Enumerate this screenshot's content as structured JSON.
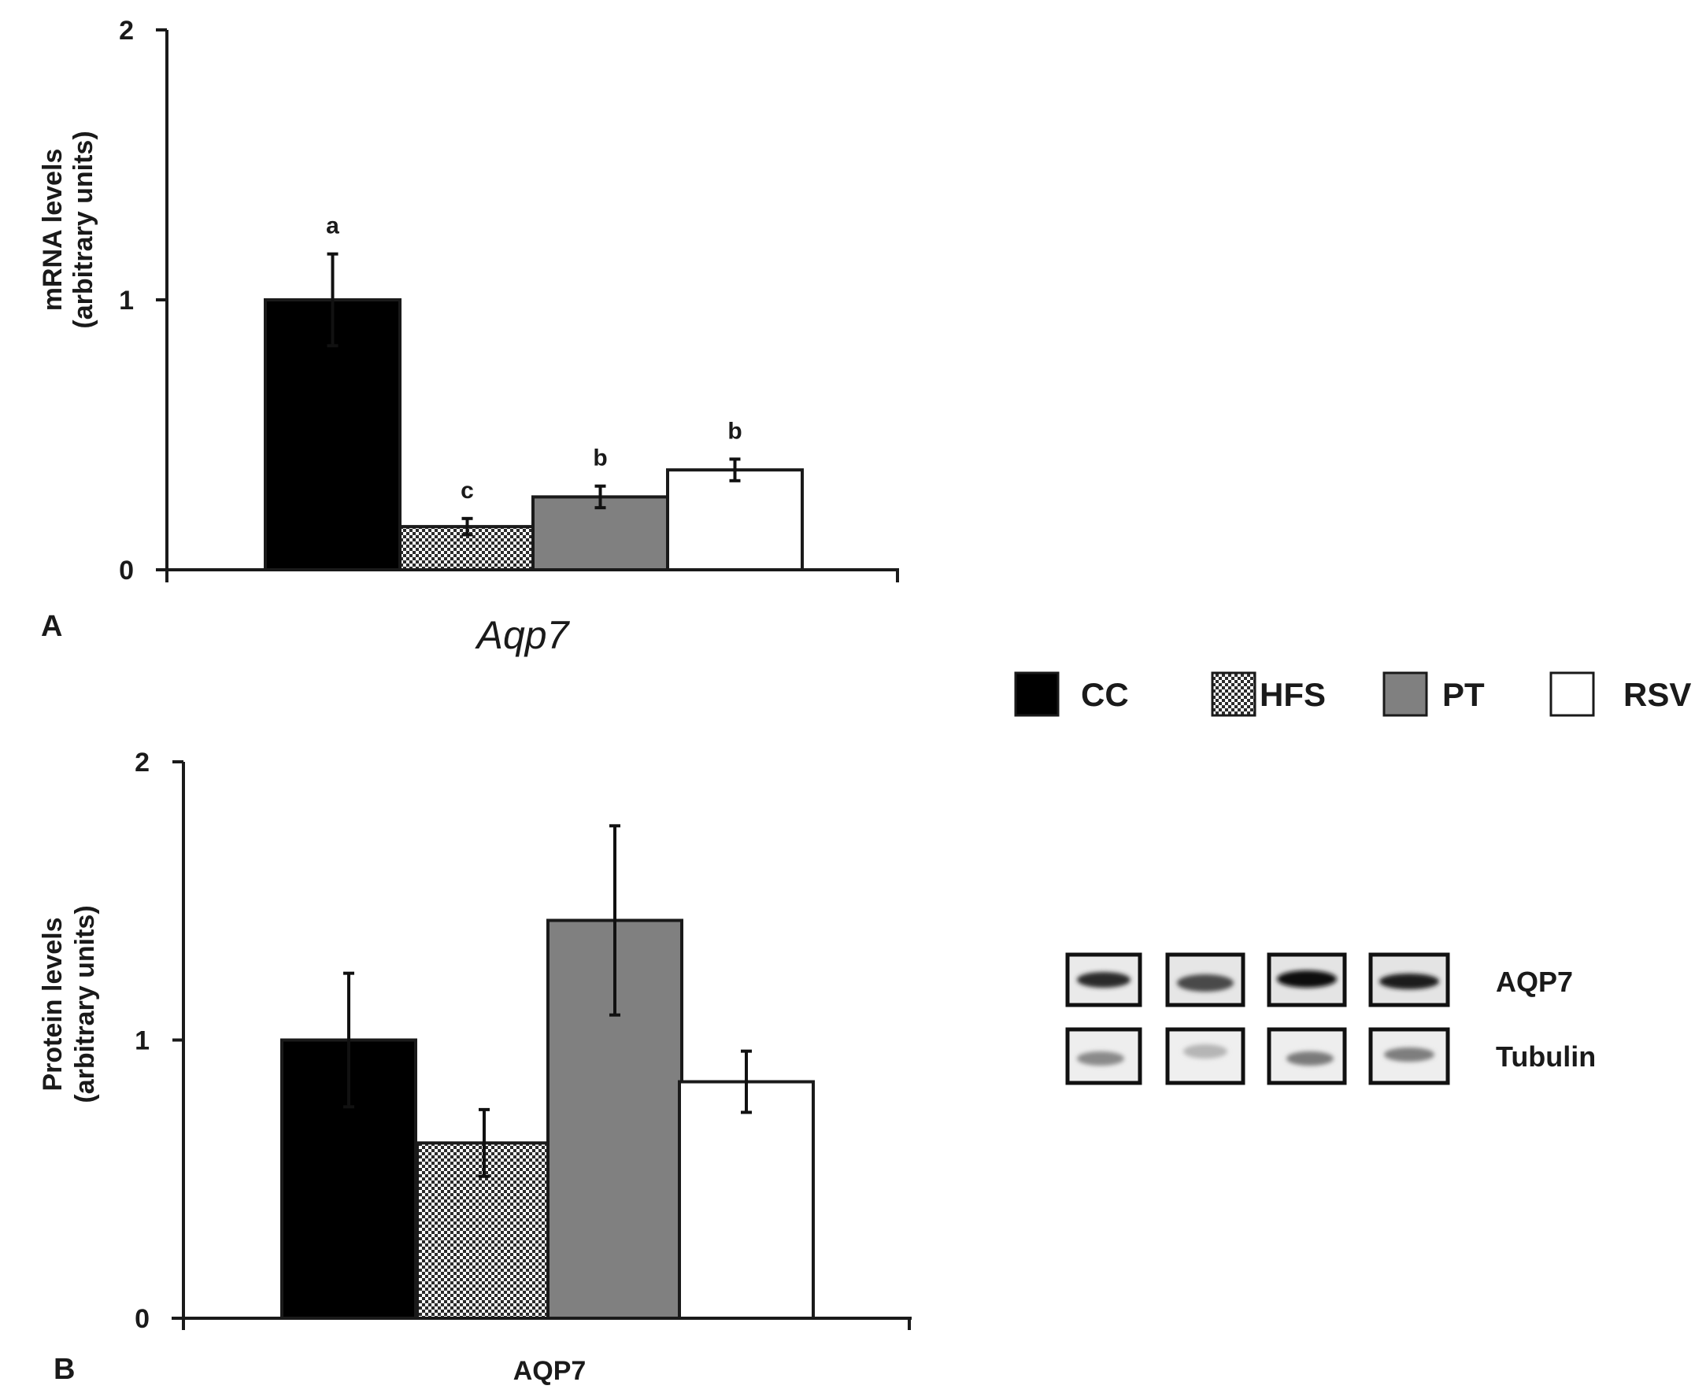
{
  "chart_data": [
    {
      "type": "bar",
      "panel": "A",
      "title": "",
      "xlabel": "Aqp7",
      "ylabel": [
        "mRNA levels",
        "(arbitrary units)"
      ],
      "ylim": [
        0,
        2
      ],
      "yticks": [
        "0",
        "1",
        "2"
      ],
      "categories": [
        "CC",
        "HFS",
        "PT",
        "RSV"
      ],
      "values": [
        1.0,
        0.16,
        0.27,
        0.37
      ],
      "errors": [
        0.17,
        0.03,
        0.04,
        0.04
      ],
      "significance": [
        "a",
        "c",
        "b",
        "b"
      ]
    },
    {
      "type": "bar",
      "panel": "B",
      "title": "",
      "xlabel": "AQP7",
      "ylabel": [
        "Protein levels",
        "(arbitrary units)"
      ],
      "ylim": [
        0,
        2
      ],
      "yticks": [
        "0",
        "1",
        "2"
      ],
      "categories": [
        "CC",
        "HFS",
        "PT",
        "RSV"
      ],
      "values": [
        1.0,
        0.63,
        1.43,
        0.85
      ],
      "errors": [
        0.24,
        0.12,
        0.34,
        0.11
      ],
      "significance": [
        "",
        "",
        "",
        ""
      ]
    }
  ],
  "legend": [
    {
      "label": "CC",
      "fill": "black"
    },
    {
      "label": "HFS",
      "fill": "checker"
    },
    {
      "label": "PT",
      "fill": "gray"
    },
    {
      "label": "RSV",
      "fill": "white"
    }
  ],
  "blot": {
    "rows": [
      "AQP7",
      "Tubulin"
    ]
  },
  "colors": {
    "black": "#000000",
    "gray": "#808080",
    "white": "#ffffff",
    "checker_dark": "#2b2b2b",
    "checker_light": "#ffffff",
    "axis": "#1a1a1a"
  }
}
